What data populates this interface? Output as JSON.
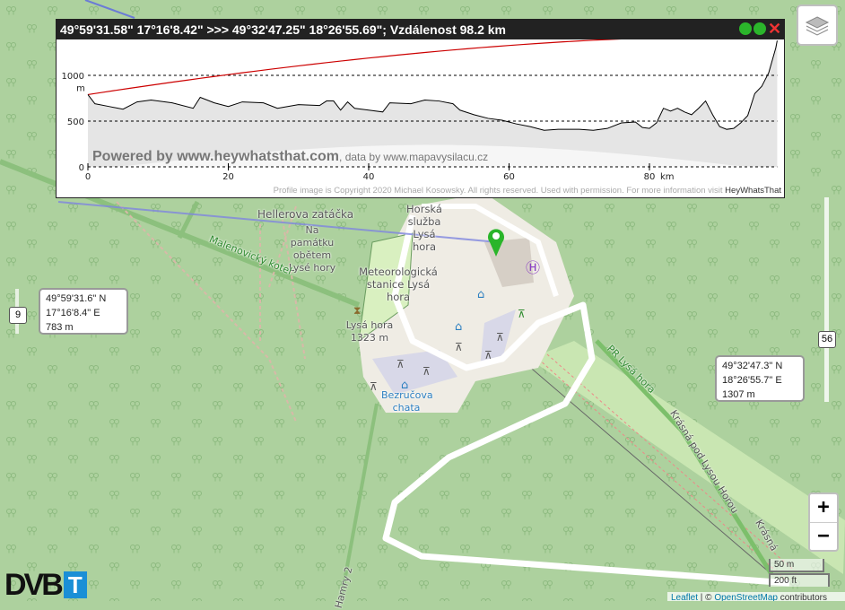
{
  "profile": {
    "title": "49°59'31.58\" 17°16'8.42\" >>> 49°32'47.25\" 18°26'55.69\"; Vzdálenost 98.2 km",
    "y_ticks": [
      "1000",
      "500",
      "0"
    ],
    "y_unit": "m",
    "x_ticks": [
      "0",
      "20",
      "40",
      "60",
      "80"
    ],
    "x_unit": "km",
    "watermark": "Powered by www.heywhatsthat.com",
    "data_credit": ", data by www.mapavysilacu.cz",
    "copyright": "Profile image is Copyright 2020 Michael Kosowsky. All rights reserved. Used with permission. For more information visit ",
    "copyright_link": "HeyWhatsThat",
    "colors": {
      "line_of_sight": "#cc0000",
      "terrain": "#000000",
      "title_bar": "#222222"
    }
  },
  "start_point": {
    "lat": "49°59'31.6\" N",
    "lon": "17°16'8.4\" E",
    "elevation": "783 m",
    "marker": "9"
  },
  "end_point": {
    "lat": "49°32'47.3\" N",
    "lon": "18°26'55.7\" E",
    "elevation": "1307 m",
    "marker": "56"
  },
  "map_labels": {
    "hellerova": "Hellerova zatáčka",
    "pamatka": "Na památku obětem Lysé hory",
    "malenovicky": "Malenovický kotel",
    "horska": "Horská služba Lysá hora",
    "meteo": "Meteorologická stanice Lysá hora",
    "peak": "Lysá hora 1323 m",
    "bezrucova": "Bezručova chata",
    "pr": "PR Lysá hora",
    "krasna_pod": "Krásná pod Lysou Horou",
    "krasna": "Krásná",
    "hamry": "Hamry 2"
  },
  "controls": {
    "zoom_in": "+",
    "zoom_out": "−",
    "scale_metric": "50 m",
    "scale_imperial": "200 ft",
    "layers_icon": "layers-icon"
  },
  "attribution": {
    "leaflet": "Leaflet",
    "sep": " | © ",
    "osm": "OpenStreetMap",
    "rest": " contributors"
  },
  "logo": {
    "text": "DVB",
    "badge": "T",
    "badge_color": "#1a8fd6"
  }
}
